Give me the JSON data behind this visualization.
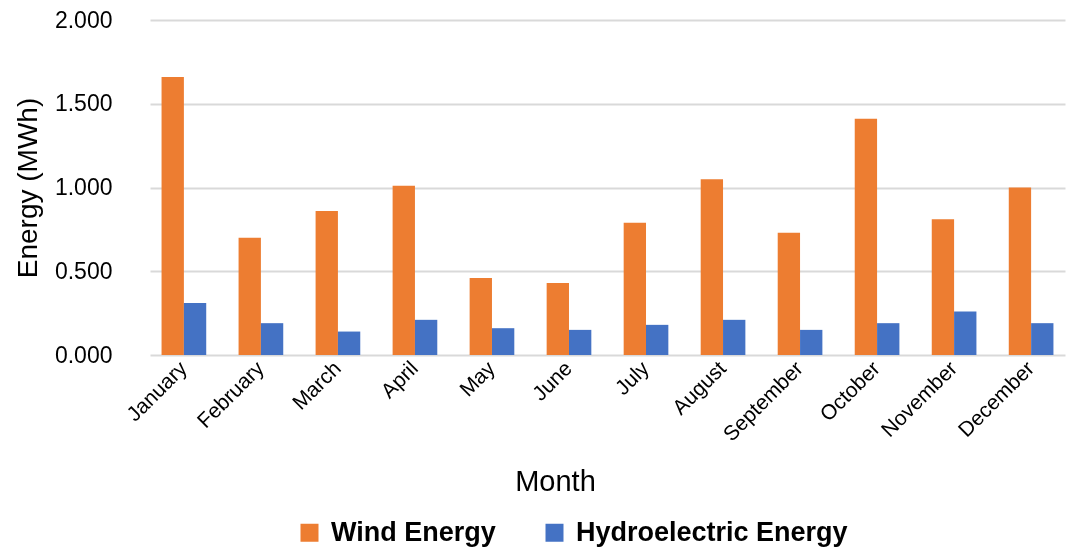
{
  "chart_data": {
    "type": "bar",
    "xlabel": "Month",
    "ylabel": "Energy (MWh)",
    "categories": [
      "January",
      "February",
      "March",
      "April",
      "May",
      "June",
      "July",
      "August",
      "September",
      "October",
      "November",
      "December"
    ],
    "series": [
      {
        "name": "Wind Energy",
        "color": "#ed7d31",
        "values": [
          1.66,
          0.7,
          0.86,
          1.01,
          0.46,
          0.43,
          0.79,
          1.05,
          0.73,
          1.41,
          0.81,
          1.0
        ]
      },
      {
        "name": "Hydroelectric Energy",
        "color": "#4472c4",
        "values": [
          0.31,
          0.19,
          0.14,
          0.21,
          0.16,
          0.15,
          0.18,
          0.21,
          0.15,
          0.19,
          0.26,
          0.19
        ]
      }
    ],
    "ylim": [
      0,
      2
    ],
    "yticks": [
      {
        "value": 0,
        "label": "0.000"
      },
      {
        "value": 0.5,
        "label": "0.500"
      },
      {
        "value": 1,
        "label": "1.000"
      },
      {
        "value": 1.5,
        "label": "1.500"
      },
      {
        "value": 2,
        "label": "2.000"
      }
    ],
    "grid": "y",
    "legend": "bottom"
  }
}
